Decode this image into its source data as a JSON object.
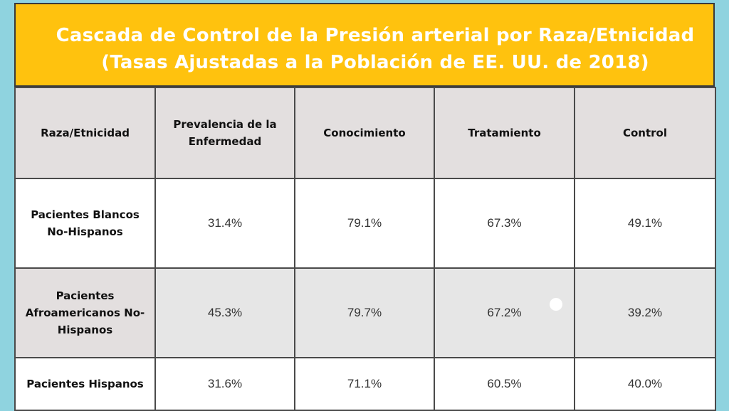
{
  "title": {
    "line1": "Cascada de Control de la Presión arterial por Raza/Etnicidad",
    "line2": "(Tasas Ajustadas a la Población de EE. UU. de 2018)"
  },
  "table": {
    "headers": [
      "Raza/Etnicidad",
      "Prevalencia de la Enfermedad",
      "Conocimiento",
      "Tratamiento",
      "Control"
    ],
    "rows": [
      {
        "group": "Pacientes Blancos No-Hispanos",
        "prevalencia": "31.4%",
        "conocimiento": "79.1%",
        "tratamiento": "67.3%",
        "control": "49.1%"
      },
      {
        "group": "Pacientes Afroamericanos No-Hispanos",
        "prevalencia": "45.3%",
        "conocimiento": "79.7%",
        "tratamiento": "67.2%",
        "control": "39.2%"
      },
      {
        "group": "Pacientes Hispanos",
        "prevalencia": "31.6%",
        "conocimiento": "71.1%",
        "tratamiento": "60.5%",
        "control": "40.0%"
      }
    ]
  },
  "colors": {
    "background": "#8fd3df",
    "banner": "#ffc20e",
    "header_fill": "#e3dfdf",
    "shaded_row": "#e6e6e6"
  }
}
